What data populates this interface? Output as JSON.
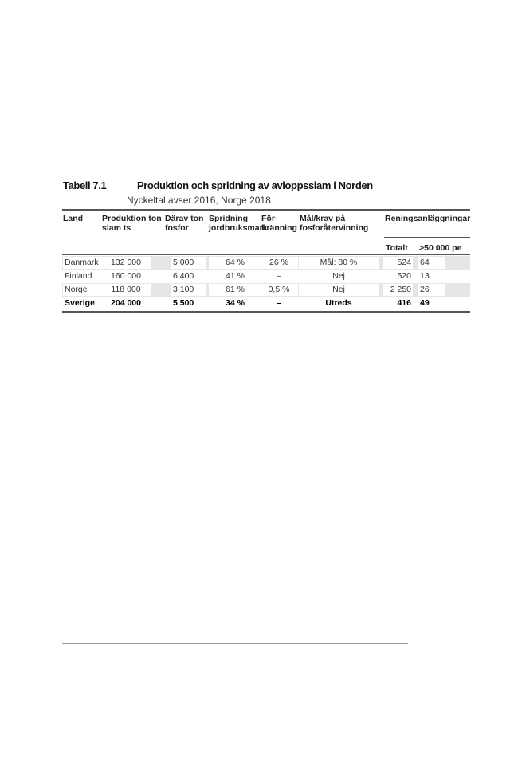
{
  "table": {
    "number": "Tabell 7.1",
    "title": "Produktion och spridning av avloppsslam i Norden",
    "subtitle": "Nyckeltal avser 2016, Norge 2018",
    "headers": {
      "land": "Land",
      "produktion": [
        "Produktion ton",
        "slam ts"
      ],
      "darav": [
        "Därav ton",
        "fosfor"
      ],
      "spridning": [
        "Spridning",
        "jordbruksmark"
      ],
      "forbranning": [
        "För-",
        "bränning"
      ],
      "malkrav": [
        "Mål/krav på",
        "fosforåtervinning"
      ],
      "reningsanlaggningar": "Reningsanläggningar",
      "totalt": "Totalt",
      "over50000": ">50 000 pe"
    },
    "rows": [
      {
        "land": "Danmark",
        "produktion": "132 000",
        "darav": "5 000",
        "spridning": "64 %",
        "forbranning": "26 %",
        "malkrav": "Mål: 80 %",
        "totalt": "524",
        "over50000": "64"
      },
      {
        "land": "Finland",
        "produktion": "160 000",
        "darav": "6 400",
        "spridning": "41 %",
        "forbranning": "–",
        "malkrav": "Nej",
        "totalt": "520",
        "over50000": "13"
      },
      {
        "land": "Norge",
        "produktion": "118 000",
        "darav": "3 100",
        "spridning": "61 %",
        "forbranning": "0,5 %",
        "malkrav": "Nej",
        "totalt": "2 250",
        "over50000": "26"
      },
      {
        "land": "Sverige",
        "produktion": "204 000",
        "darav": "5 500",
        "spridning": "34 %",
        "forbranning": "–",
        "malkrav": "Utreds",
        "totalt": "416",
        "over50000": "49"
      }
    ]
  }
}
